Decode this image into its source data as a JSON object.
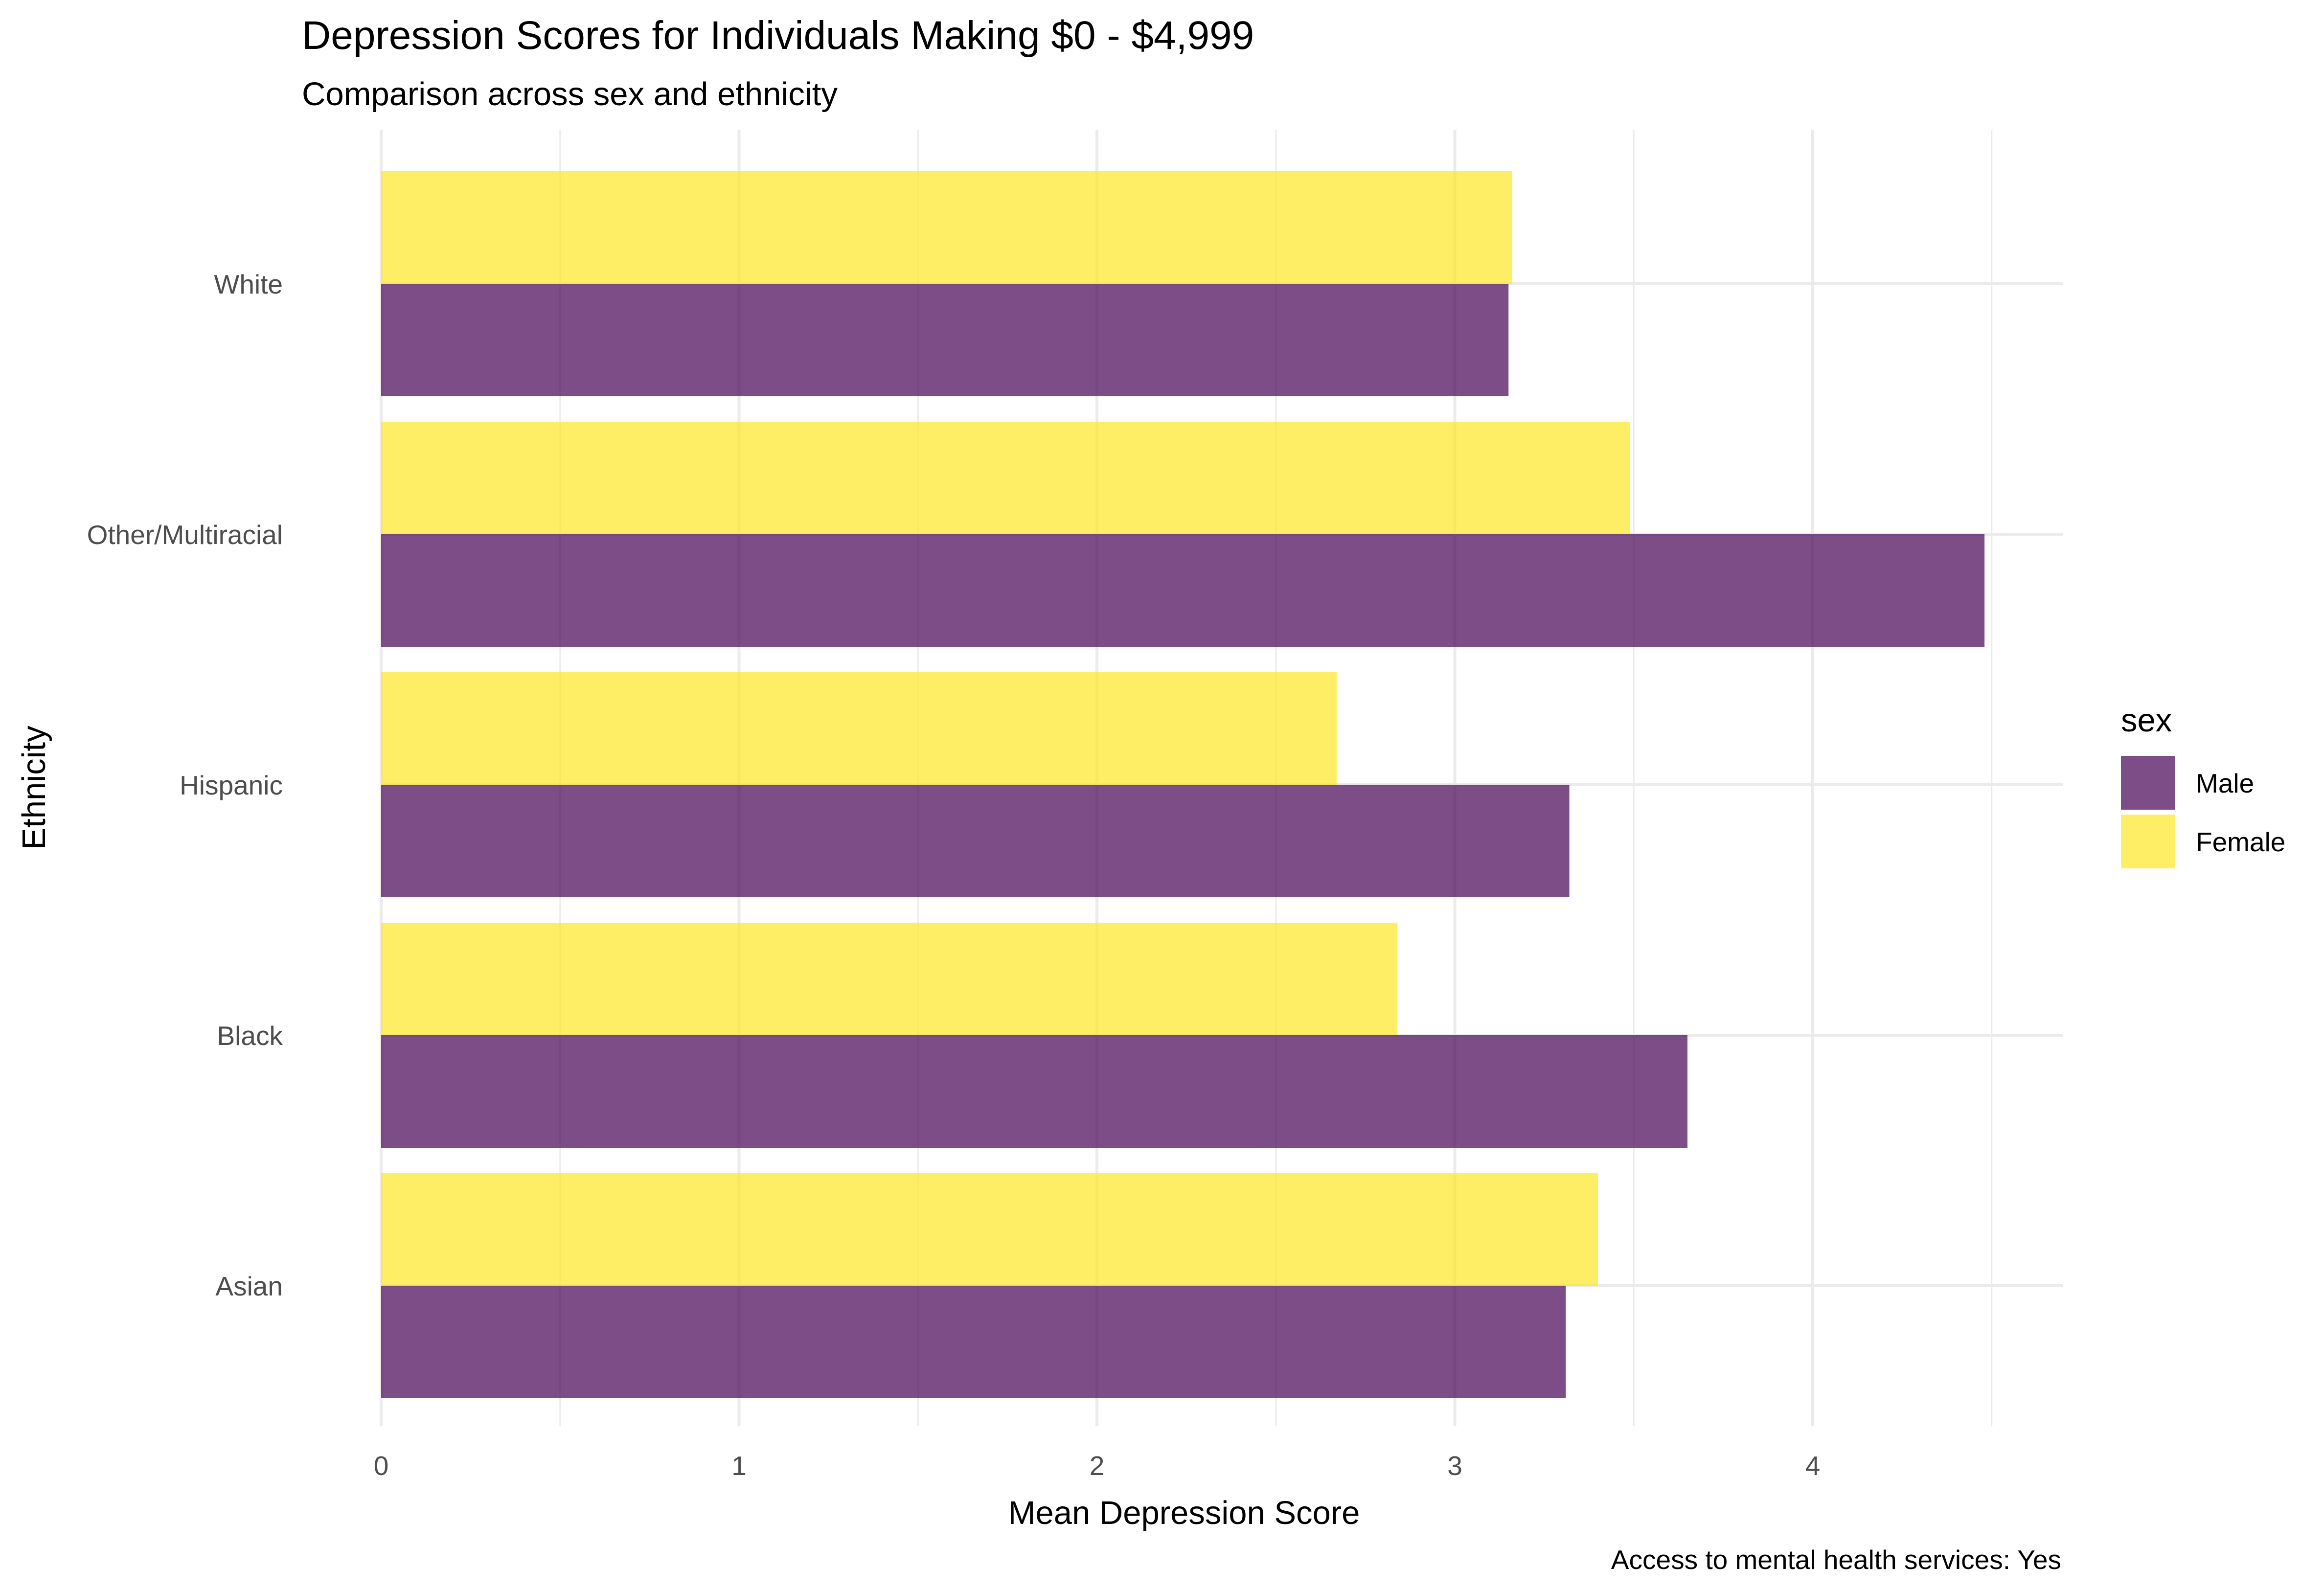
{
  "chart_data": {
    "type": "bar",
    "orientation": "horizontal",
    "title": "Depression Scores for Individuals Making $0 - $4,999",
    "subtitle": "Comparison across sex and ethnicity",
    "xlabel": "Mean Depression Score",
    "ylabel": "Ethnicity",
    "caption": "Access to mental health services: Yes",
    "categories": [
      "Asian",
      "Black",
      "Hispanic",
      "Other/Multiracial",
      "White"
    ],
    "xlim": [
      0,
      4.7
    ],
    "x_ticks": [
      0,
      1,
      2,
      3,
      4
    ],
    "x_tick_labels": [
      "0",
      "1",
      "2",
      "3",
      "4"
    ],
    "grid": true,
    "legend": {
      "title": "sex",
      "placement": "right"
    },
    "series": [
      {
        "name": "Male",
        "color": "#440154",
        "values": [
          3.31,
          3.65,
          3.32,
          4.48,
          3.15
        ]
      },
      {
        "name": "Female",
        "color": "#fde725",
        "values": [
          3.4,
          2.84,
          2.67,
          3.49,
          3.16
        ]
      }
    ]
  }
}
